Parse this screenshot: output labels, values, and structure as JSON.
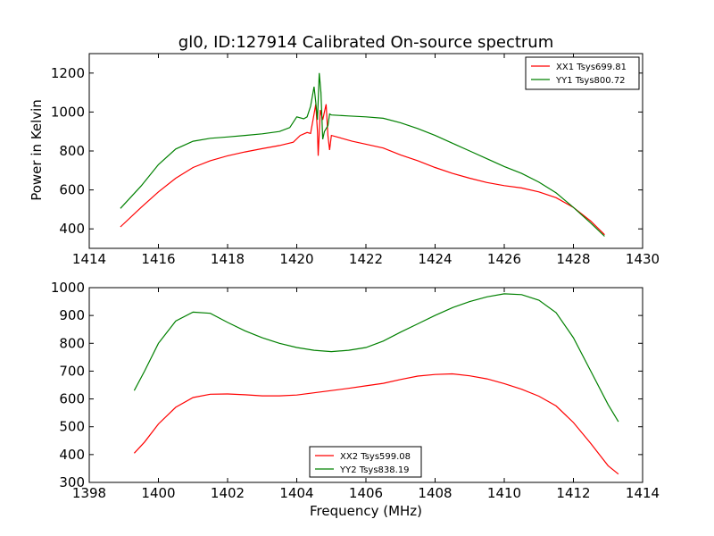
{
  "title": "gl0, ID:127914 Calibrated On-source spectrum",
  "ylabel": "Power in Kelvin",
  "xlabel": "Frequency (MHz)",
  "colors": {
    "xx": "#ff0000",
    "yy": "#008000"
  },
  "chart_data": [
    {
      "type": "line",
      "xlim": [
        1414,
        1430
      ],
      "ylim": [
        300,
        1300
      ],
      "xticks": [
        1414,
        1416,
        1418,
        1420,
        1422,
        1424,
        1426,
        1428,
        1430
      ],
      "yticks": [
        400,
        600,
        800,
        1000,
        1200
      ],
      "legend_position": "upper-right",
      "series": [
        {
          "name": "XX1 Tsys699.81",
          "color": "#ff0000",
          "points": [
            [
              1414.9,
              410
            ],
            [
              1415.5,
              510
            ],
            [
              1416.0,
              590
            ],
            [
              1416.5,
              660
            ],
            [
              1417.0,
              715
            ],
            [
              1417.5,
              750
            ],
            [
              1418.0,
              775
            ],
            [
              1418.5,
              795
            ],
            [
              1419.0,
              812
            ],
            [
              1419.5,
              828
            ],
            [
              1419.9,
              845
            ],
            [
              1420.1,
              880
            ],
            [
              1420.3,
              895
            ],
            [
              1420.4,
              890
            ],
            [
              1420.5,
              990
            ],
            [
              1420.55,
              1040
            ],
            [
              1420.6,
              900
            ],
            [
              1420.62,
              775
            ],
            [
              1420.68,
              1010
            ],
            [
              1420.75,
              960
            ],
            [
              1420.85,
              1040
            ],
            [
              1420.9,
              880
            ],
            [
              1420.95,
              805
            ],
            [
              1421.0,
              880
            ],
            [
              1421.3,
              865
            ],
            [
              1421.6,
              850
            ],
            [
              1422.0,
              835
            ],
            [
              1422.5,
              815
            ],
            [
              1423.0,
              780
            ],
            [
              1423.5,
              750
            ],
            [
              1424.0,
              715
            ],
            [
              1424.5,
              685
            ],
            [
              1425.0,
              660
            ],
            [
              1425.5,
              638
            ],
            [
              1426.0,
              622
            ],
            [
              1426.5,
              610
            ],
            [
              1427.0,
              590
            ],
            [
              1427.5,
              560
            ],
            [
              1428.0,
              510
            ],
            [
              1428.5,
              440
            ],
            [
              1428.9,
              370
            ]
          ]
        },
        {
          "name": "YY1 Tsys800.72",
          "color": "#008000",
          "points": [
            [
              1414.9,
              505
            ],
            [
              1415.5,
              620
            ],
            [
              1416.0,
              730
            ],
            [
              1416.5,
              810
            ],
            [
              1417.0,
              850
            ],
            [
              1417.5,
              865
            ],
            [
              1418.0,
              872
            ],
            [
              1418.5,
              880
            ],
            [
              1419.0,
              888
            ],
            [
              1419.5,
              900
            ],
            [
              1419.8,
              920
            ],
            [
              1420.0,
              975
            ],
            [
              1420.2,
              965
            ],
            [
              1420.3,
              975
            ],
            [
              1420.4,
              1030
            ],
            [
              1420.5,
              1130
            ],
            [
              1420.55,
              1050
            ],
            [
              1420.6,
              960
            ],
            [
              1420.65,
              1200
            ],
            [
              1420.7,
              1100
            ],
            [
              1420.75,
              860
            ],
            [
              1420.8,
              900
            ],
            [
              1420.9,
              930
            ],
            [
              1420.95,
              990
            ],
            [
              1421.0,
              985
            ],
            [
              1421.5,
              980
            ],
            [
              1422.0,
              975
            ],
            [
              1422.5,
              968
            ],
            [
              1423.0,
              945
            ],
            [
              1423.5,
              915
            ],
            [
              1424.0,
              880
            ],
            [
              1424.5,
              840
            ],
            [
              1425.0,
              800
            ],
            [
              1425.5,
              760
            ],
            [
              1426.0,
              720
            ],
            [
              1426.5,
              685
            ],
            [
              1427.0,
              640
            ],
            [
              1427.5,
              585
            ],
            [
              1428.0,
              510
            ],
            [
              1428.5,
              430
            ],
            [
              1428.9,
              362
            ]
          ]
        }
      ]
    },
    {
      "type": "line",
      "xlim": [
        1398,
        1414
      ],
      "ylim": [
        300,
        1000
      ],
      "xticks": [
        1398,
        1400,
        1402,
        1404,
        1406,
        1408,
        1410,
        1412,
        1414
      ],
      "yticks": [
        300,
        400,
        500,
        600,
        700,
        800,
        900,
        1000
      ],
      "legend_position": "lower-center",
      "series": [
        {
          "name": "XX2 Tsys599.08",
          "color": "#ff0000",
          "points": [
            [
              1399.3,
              405
            ],
            [
              1399.6,
              445
            ],
            [
              1400.0,
              510
            ],
            [
              1400.5,
              570
            ],
            [
              1401.0,
              605
            ],
            [
              1401.5,
              617
            ],
            [
              1402.0,
              618
            ],
            [
              1402.5,
              615
            ],
            [
              1403.0,
              611
            ],
            [
              1403.5,
              611
            ],
            [
              1404.0,
              614
            ],
            [
              1404.5,
              622
            ],
            [
              1405.0,
              630
            ],
            [
              1405.5,
              638
            ],
            [
              1406.0,
              647
            ],
            [
              1406.5,
              656
            ],
            [
              1407.0,
              670
            ],
            [
              1407.5,
              682
            ],
            [
              1408.0,
              688
            ],
            [
              1408.5,
              690
            ],
            [
              1409.0,
              683
            ],
            [
              1409.5,
              672
            ],
            [
              1410.0,
              655
            ],
            [
              1410.5,
              635
            ],
            [
              1411.0,
              610
            ],
            [
              1411.5,
              575
            ],
            [
              1412.0,
              515
            ],
            [
              1412.5,
              440
            ],
            [
              1413.0,
              360
            ],
            [
              1413.3,
              330
            ]
          ]
        },
        {
          "name": "YY2 Tsys838.19",
          "color": "#008000",
          "points": [
            [
              1399.3,
              630
            ],
            [
              1399.6,
              700
            ],
            [
              1400.0,
              800
            ],
            [
              1400.5,
              880
            ],
            [
              1401.0,
              912
            ],
            [
              1401.5,
              908
            ],
            [
              1402.0,
              875
            ],
            [
              1402.5,
              845
            ],
            [
              1403.0,
              820
            ],
            [
              1403.5,
              800
            ],
            [
              1404.0,
              785
            ],
            [
              1404.5,
              775
            ],
            [
              1405.0,
              770
            ],
            [
              1405.5,
              775
            ],
            [
              1406.0,
              785
            ],
            [
              1406.5,
              808
            ],
            [
              1407.0,
              840
            ],
            [
              1407.5,
              870
            ],
            [
              1408.0,
              900
            ],
            [
              1408.5,
              928
            ],
            [
              1409.0,
              950
            ],
            [
              1409.5,
              967
            ],
            [
              1410.0,
              978
            ],
            [
              1410.5,
              975
            ],
            [
              1411.0,
              955
            ],
            [
              1411.5,
              910
            ],
            [
              1412.0,
              820
            ],
            [
              1412.5,
              700
            ],
            [
              1413.0,
              580
            ],
            [
              1413.3,
              518
            ]
          ]
        }
      ]
    }
  ]
}
